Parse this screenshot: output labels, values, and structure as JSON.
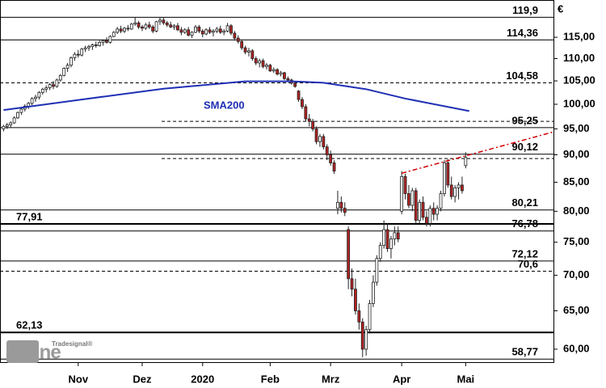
{
  "chart_data": {
    "type": "candlestick",
    "currency": "€",
    "logo": "online",
    "logo_brand": "Tradesignal®",
    "log_scale": true,
    "ylim": [
      58.4,
      124.3
    ],
    "xlim": [
      -1,
      154.7
    ],
    "yticks": [
      {
        "value": 115,
        "label": "115,00"
      },
      {
        "value": 110,
        "label": "110,00"
      },
      {
        "value": 105,
        "label": "105,00"
      },
      {
        "value": 100,
        "label": "100,00"
      },
      {
        "value": 95,
        "label": "95,00"
      },
      {
        "value": 90,
        "label": "90,00"
      },
      {
        "value": 85,
        "label": "85,00"
      },
      {
        "value": 80,
        "label": "80,00"
      },
      {
        "value": 75,
        "label": "75,00"
      },
      {
        "value": 70,
        "label": "70,00"
      },
      {
        "value": 65,
        "label": "65,00"
      },
      {
        "value": 60,
        "label": "60,00"
      }
    ],
    "xticks": [
      {
        "value": 21,
        "label": "Nov"
      },
      {
        "value": 39,
        "label": "Dez"
      },
      {
        "value": 56,
        "label": "2020"
      },
      {
        "value": 75,
        "label": "Feb"
      },
      {
        "value": 92,
        "label": "Mrz"
      },
      {
        "value": 112,
        "label": "Apr"
      },
      {
        "value": 130,
        "label": "Mai"
      }
    ],
    "up_color": "#ffffff",
    "down_color": "#b22222",
    "levels": [
      {
        "value": 119.9,
        "label": "119,9",
        "style": "solid",
        "side": "right"
      },
      {
        "value": 114.36,
        "label": "114,36",
        "style": "solid",
        "side": "right"
      },
      {
        "value": 104.58,
        "label": "104,58",
        "style": "dashed",
        "side": "right"
      },
      {
        "value": 95.25,
        "label": "95,25",
        "style": "solid",
        "side": "right"
      },
      {
        "value": 90.12,
        "label": "90,12",
        "style": "solid",
        "side": "right"
      },
      {
        "value": 80.21,
        "label": "80,21",
        "style": "solid",
        "side": "right"
      },
      {
        "value": 77.91,
        "label": "77,91",
        "style": "bold",
        "side": "left"
      },
      {
        "value": 76.78,
        "label": "76,78",
        "style": "solid",
        "side": "right"
      },
      {
        "value": 72.12,
        "label": "72,12",
        "style": "solid",
        "side": "right"
      },
      {
        "value": 70.6,
        "label": "70,6",
        "style": "dashed",
        "side": "right"
      },
      {
        "value": 62.13,
        "label": "62,13",
        "style": "bold",
        "side": "left"
      },
      {
        "value": 58.77,
        "label": "58,77",
        "style": "solid",
        "side": "right"
      }
    ],
    "dashed_lines": [
      96.5,
      89.3
    ],
    "sma": {
      "name": "SMA200",
      "color": "#1f2fb4",
      "x": [
        0,
        22,
        45,
        68,
        81,
        90,
        102,
        113,
        131
      ],
      "values": [
        98.8,
        101,
        103.3,
        104.9,
        104.9,
        104.6,
        103.2,
        101.2,
        98.6
      ]
    },
    "trendline": {
      "color": "#d00000",
      "x": [
        112,
        154.7
      ],
      "values": [
        86.6,
        94.4
      ]
    },
    "candles": [
      [
        95,
        95.8,
        94.5,
        95.5
      ],
      [
        95.5,
        96.2,
        95,
        95.8
      ],
      [
        95.8,
        96.5,
        95.2,
        96.2
      ],
      [
        96.2,
        97.5,
        96,
        97.2
      ],
      [
        97.2,
        98.5,
        97,
        98.3
      ],
      [
        98.3,
        99.2,
        97.8,
        99
      ],
      [
        99,
        100,
        98.5,
        99.6
      ],
      [
        99.6,
        100.5,
        99,
        100.2
      ],
      [
        100.2,
        101.5,
        99.8,
        101.2
      ],
      [
        101.2,
        102,
        100.5,
        101.5
      ],
      [
        101.5,
        102.8,
        101,
        102.5
      ],
      [
        102.5,
        103.5,
        102,
        103.2
      ],
      [
        103.2,
        104,
        102.5,
        103.5
      ],
      [
        103.5,
        104.5,
        103,
        104.2
      ],
      [
        104.2,
        105,
        103.2,
        103.8
      ],
      [
        103.8,
        105.5,
        103.5,
        105.2
      ],
      [
        105.2,
        106.5,
        104.8,
        106.2
      ],
      [
        106.2,
        108,
        106,
        107.8
      ],
      [
        107.8,
        109,
        107,
        108.5
      ],
      [
        108.5,
        110.5,
        108,
        110.2
      ],
      [
        110.2,
        111.5,
        109.5,
        111
      ],
      [
        111,
        112,
        110.2,
        110.8
      ],
      [
        110.8,
        112.5,
        110.5,
        112.2
      ],
      [
        112.2,
        113,
        111.5,
        112.5
      ],
      [
        112.5,
        113.2,
        111.8,
        112.8
      ],
      [
        112.8,
        113.5,
        112,
        113.2
      ],
      [
        113.2,
        114,
        112.5,
        113
      ],
      [
        113,
        114.2,
        112.8,
        113.8
      ],
      [
        113.8,
        114.5,
        113,
        114.2
      ],
      [
        114.2,
        115,
        113.5,
        113.8
      ],
      [
        113.8,
        115.5,
        113.5,
        115.2
      ],
      [
        115.2,
        116.5,
        115,
        116.2
      ],
      [
        116.2,
        117.5,
        115.8,
        117
      ],
      [
        117,
        117.8,
        116,
        116.5
      ],
      [
        116.5,
        117.5,
        116,
        117.2
      ],
      [
        117.2,
        118,
        116.5,
        117
      ],
      [
        117,
        118.5,
        116.8,
        118.2
      ],
      [
        118.2,
        119.9,
        117.8,
        118.5
      ],
      [
        118.5,
        119,
        117,
        117.5
      ],
      [
        117.5,
        118,
        116.5,
        117.2
      ],
      [
        117.2,
        118.5,
        116.8,
        118
      ],
      [
        118,
        118.8,
        117,
        117.5
      ],
      [
        117.5,
        118,
        116,
        116.5
      ],
      [
        116.5,
        119,
        116.2,
        118.8
      ],
      [
        118.8,
        119.9,
        118,
        119.2
      ],
      [
        119.2,
        119.8,
        118,
        118.5
      ],
      [
        118.5,
        119,
        117.5,
        118
      ],
      [
        118,
        118.8,
        117.2,
        117.5
      ],
      [
        117.5,
        118.2,
        116.8,
        117.8
      ],
      [
        117.8,
        118.5,
        116.5,
        116.8
      ],
      [
        116.8,
        117.5,
        115.5,
        116.2
      ],
      [
        116.2,
        117.2,
        115.8,
        116.8
      ],
      [
        116.8,
        117.5,
        115.2,
        115.5
      ],
      [
        115.5,
        116.5,
        114.8,
        116.2
      ],
      [
        116.2,
        118,
        116,
        117.5
      ],
      [
        117.5,
        118,
        116,
        116.5
      ],
      [
        116.5,
        117,
        115,
        115.8
      ],
      [
        115.8,
        117.2,
        115.5,
        116.8
      ],
      [
        116.8,
        117.5,
        115.8,
        116.2
      ],
      [
        116.2,
        117,
        115.2,
        116.5
      ],
      [
        116.5,
        117.5,
        116,
        117
      ],
      [
        117,
        117.8,
        115.8,
        116.2
      ],
      [
        116.2,
        117,
        115.5,
        116.5
      ],
      [
        116.5,
        118.5,
        116.2,
        117.8
      ],
      [
        117.8,
        118.2,
        115.5,
        116
      ],
      [
        116,
        116.5,
        114.2,
        114.8
      ],
      [
        114.8,
        115.5,
        113.5,
        114
      ],
      [
        114,
        114.5,
        112,
        112.5
      ],
      [
        112.5,
        113,
        111,
        111.5
      ],
      [
        111.5,
        112.5,
        110.5,
        111.8
      ],
      [
        111.8,
        112.2,
        109.5,
        110
      ],
      [
        110,
        110.5,
        108.5,
        109
      ],
      [
        109,
        110,
        108,
        109.5
      ],
      [
        109.5,
        110,
        107.8,
        108.2
      ],
      [
        108.2,
        109,
        107.5,
        108.5
      ],
      [
        108.5,
        108.8,
        107,
        107.2
      ],
      [
        107.2,
        108,
        106.8,
        107.5
      ],
      [
        107.5,
        107.8,
        106.2,
        106.5
      ],
      [
        106.5,
        107.2,
        106,
        106.8
      ],
      [
        106.8,
        107,
        105.2,
        105.5
      ],
      [
        105.5,
        106,
        104.8,
        105.2
      ],
      [
        105.2,
        105.5,
        104.2,
        104.5
      ],
      [
        104.5,
        104.8,
        103.5,
        103.8
      ],
      [
        102.8,
        103,
        100.5,
        101
      ],
      [
        101,
        101.5,
        99,
        99.5
      ],
      [
        99.5,
        100,
        96.5,
        97
      ],
      [
        97,
        98,
        95.5,
        96.5
      ],
      [
        96.5,
        97,
        94.5,
        95
      ],
      [
        95,
        95.5,
        92,
        92.5
      ],
      [
        92.5,
        94,
        91.5,
        93.5
      ],
      [
        93.5,
        94,
        91,
        91.5
      ],
      [
        91.5,
        92,
        89,
        90
      ],
      [
        90,
        90.8,
        88,
        88.5
      ],
      [
        88.5,
        89,
        86.5,
        87
      ],
      [
        80.5,
        83.5,
        79.5,
        81.5
      ],
      [
        81.5,
        82.5,
        79.8,
        80.5
      ],
      [
        80.5,
        81.5,
        79.2,
        79.8
      ],
      [
        77,
        77.5,
        68,
        69.5
      ],
      [
        69.5,
        71,
        67,
        68
      ],
      [
        68,
        69.5,
        64.5,
        65
      ],
      [
        65,
        66,
        62.5,
        63.5
      ],
      [
        63.5,
        64,
        59,
        60
      ],
      [
        60,
        63,
        59.2,
        62.5
      ],
      [
        62.5,
        66.5,
        62,
        66
      ],
      [
        66,
        70,
        65.5,
        69
      ],
      [
        69,
        73,
        68.5,
        72.5
      ],
      [
        72.5,
        75,
        72,
        74.5
      ],
      [
        74.5,
        78.5,
        74,
        77
      ],
      [
        77,
        78,
        73.5,
        74
      ],
      [
        74,
        76,
        72.5,
        75.5
      ],
      [
        75.5,
        77.5,
        74.5,
        76.5
      ],
      [
        76.5,
        77.5,
        75,
        75.5
      ],
      [
        80,
        87,
        79.5,
        86
      ],
      [
        86,
        86.5,
        82,
        83
      ],
      [
        83,
        84.5,
        80.5,
        81
      ],
      [
        81,
        84,
        80,
        83.5
      ],
      [
        83.5,
        84,
        78,
        78.5
      ],
      [
        78.5,
        82,
        78,
        81.5
      ],
      [
        81.5,
        82.5,
        78.5,
        79
      ],
      [
        79,
        80,
        77.5,
        78
      ],
      [
        78,
        81,
        77.5,
        80.5
      ],
      [
        80.5,
        81.5,
        78.5,
        79.5
      ],
      [
        79.5,
        81,
        78.5,
        80.5
      ],
      [
        80.5,
        83.5,
        80,
        83
      ],
      [
        83,
        89,
        82.5,
        88.5
      ],
      [
        88.5,
        89.2,
        84,
        84.5
      ],
      [
        84.5,
        86,
        82,
        82.5
      ],
      [
        82.5,
        84.5,
        81.5,
        84
      ],
      [
        84,
        85,
        82,
        84.5
      ],
      [
        84.5,
        86,
        83,
        83.5
      ],
      [
        88,
        90.5,
        87.5,
        89.5
      ]
    ]
  }
}
